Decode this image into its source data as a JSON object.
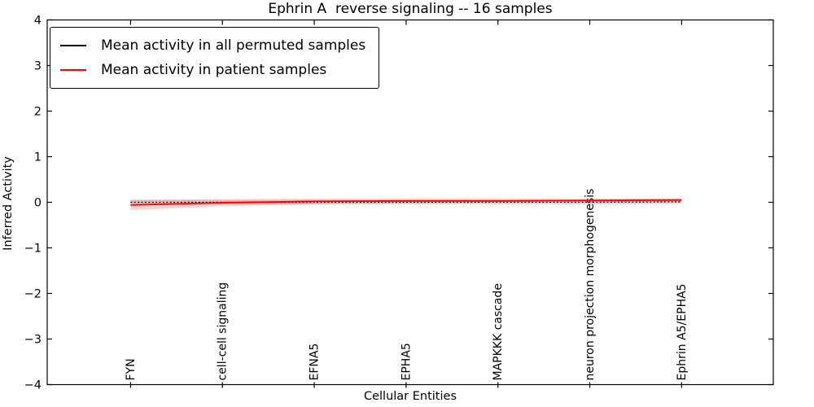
{
  "chart_data": {
    "type": "line",
    "title": "Ephrin A  reverse signaling -- 16 samples",
    "xlabel": "Cellular Entities",
    "ylabel": "Inferred Activity",
    "ylim": [
      -4,
      4
    ],
    "yticks": [
      4,
      3,
      2,
      1,
      0,
      -1,
      -2,
      -3,
      -4
    ],
    "grid": false,
    "legend_position": "upper left",
    "categories": [
      "FYN",
      "cell-cell signaling",
      "EFNA5",
      "EPHA5",
      "MAPKKK cascade",
      "neuron projection morphogenesis",
      "Ephrin A5/EPHA5"
    ],
    "series": [
      {
        "name": "Mean activity in all permuted samples",
        "color": "#000000",
        "line_style": "dotted",
        "values": [
          0.0,
          0.0,
          0.0,
          0.0,
          0.0,
          0.0,
          0.01
        ],
        "band_upper": [
          0.06,
          0.05,
          0.05,
          0.05,
          0.05,
          0.05,
          0.06
        ],
        "band_lower": [
          -0.06,
          -0.05,
          -0.05,
          -0.05,
          -0.05,
          -0.05,
          -0.04
        ],
        "band_color": "rgba(0,0,0,0.13)"
      },
      {
        "name": "Mean activity in patient samples",
        "color": "#ff0000",
        "line_style": "solid",
        "values": [
          -0.06,
          -0.01,
          0.02,
          0.03,
          0.03,
          0.04,
          0.05
        ],
        "band_upper": [
          0.05,
          0.07,
          0.08,
          0.08,
          0.08,
          0.08,
          0.09
        ],
        "band_lower": [
          -0.17,
          -0.09,
          -0.04,
          -0.02,
          -0.01,
          0.0,
          0.0
        ],
        "band_color": "rgba(255,0,0,0.18)"
      }
    ]
  }
}
